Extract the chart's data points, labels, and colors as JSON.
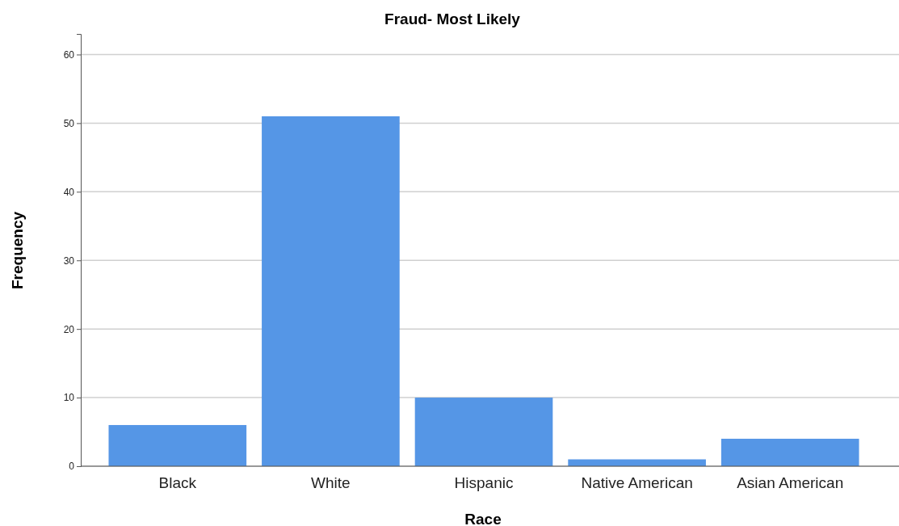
{
  "chart_data": {
    "type": "bar",
    "title": "Fraud- Most Likely",
    "xlabel": "Race",
    "ylabel": "Frequency",
    "categories": [
      "Black",
      "White",
      "Hispanic",
      "Native American",
      "Asian American"
    ],
    "values": [
      6,
      51,
      10,
      1,
      4
    ],
    "color": "#5596e6",
    "ylim": [
      0,
      63
    ],
    "yticks": [
      0,
      10,
      20,
      30,
      40,
      50,
      60
    ],
    "grid": "y"
  }
}
